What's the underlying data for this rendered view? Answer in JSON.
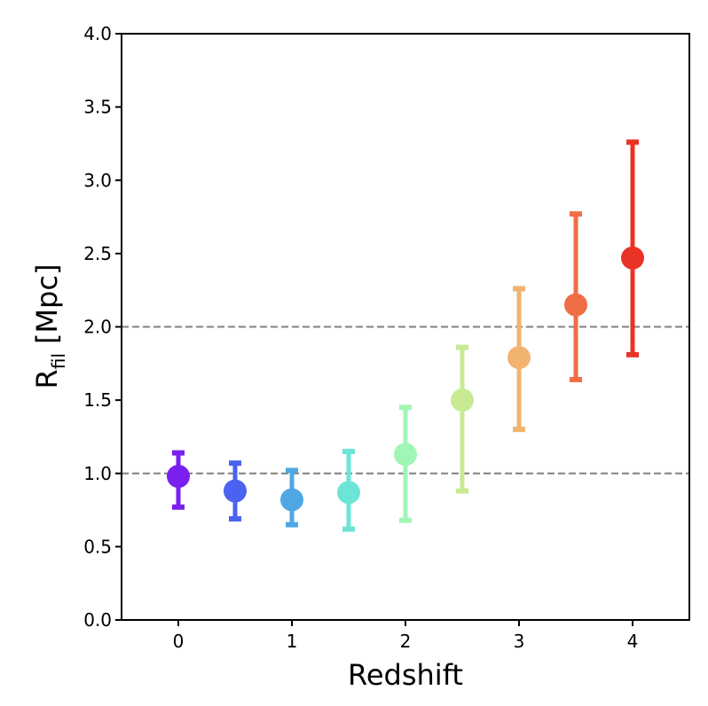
{
  "chart_data": {
    "type": "scatter",
    "title": "",
    "xlabel": "Redshift",
    "ylabel": "R",
    "ylabel_subscript": "fil",
    "ylabel_unit": "[Mpc]",
    "xlim": [
      -0.5,
      4.5
    ],
    "ylim": [
      0.0,
      4.0
    ],
    "xticks": [
      0,
      1,
      2,
      3,
      4
    ],
    "xtick_labels": [
      "0",
      "1",
      "2",
      "3",
      "4"
    ],
    "yticks": [
      0.0,
      0.5,
      1.0,
      1.5,
      2.0,
      2.5,
      3.0,
      3.5,
      4.0
    ],
    "ytick_labels": [
      "0.0",
      "0.5",
      "1.0",
      "1.5",
      "2.0",
      "2.5",
      "3.0",
      "3.5",
      "4.0"
    ],
    "reference_lines": [
      1.0,
      2.0
    ],
    "points": [
      {
        "x": 0.0,
        "y": 0.98,
        "ylow": 0.77,
        "yhigh": 1.14,
        "color": "#7a1fee"
      },
      {
        "x": 0.5,
        "y": 0.88,
        "ylow": 0.69,
        "yhigh": 1.07,
        "color": "#4a62f0"
      },
      {
        "x": 1.0,
        "y": 0.82,
        "ylow": 0.65,
        "yhigh": 1.02,
        "color": "#4fa8e4"
      },
      {
        "x": 1.5,
        "y": 0.87,
        "ylow": 0.62,
        "yhigh": 1.15,
        "color": "#6ee4d6"
      },
      {
        "x": 2.0,
        "y": 1.13,
        "ylow": 0.68,
        "yhigh": 1.45,
        "color": "#a0f6b5"
      },
      {
        "x": 2.5,
        "y": 1.5,
        "ylow": 0.88,
        "yhigh": 1.86,
        "color": "#c7ea93"
      },
      {
        "x": 3.0,
        "y": 1.79,
        "ylow": 1.3,
        "yhigh": 2.26,
        "color": "#f1b36f"
      },
      {
        "x": 3.5,
        "y": 2.15,
        "ylow": 1.64,
        "yhigh": 2.77,
        "color": "#f06e46"
      },
      {
        "x": 4.0,
        "y": 2.47,
        "ylow": 1.81,
        "yhigh": 3.26,
        "color": "#e83326"
      }
    ]
  }
}
